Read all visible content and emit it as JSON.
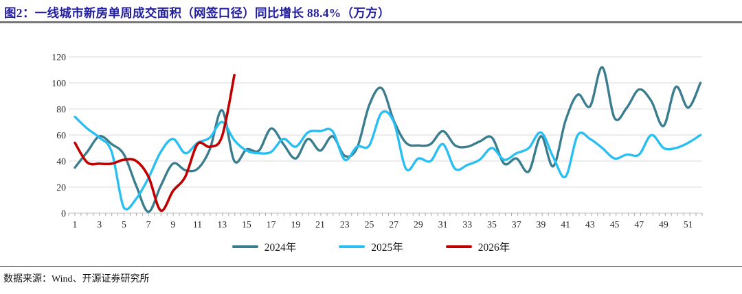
{
  "figure": {
    "title": "图2：一线城市新房单周成交面积（网签口径）同比增长 88.4%（万方）",
    "source": "数据来源：Wind、开源证券研究所"
  },
  "chart_data": {
    "type": "line",
    "title": "一线城市新房单周成交面积（网签口径）同比增长 88.4%（万方）",
    "xlabel": "",
    "ylabel": "",
    "x_range": [
      1,
      52
    ],
    "x_tick_labels": [
      1,
      3,
      5,
      7,
      9,
      11,
      13,
      15,
      17,
      19,
      21,
      23,
      25,
      27,
      29,
      31,
      33,
      35,
      37,
      39,
      41,
      43,
      45,
      47,
      49,
      51
    ],
    "ylim": [
      0,
      120
    ],
    "y_ticks": [
      0,
      20,
      40,
      60,
      80,
      100,
      120
    ],
    "grid": true,
    "legend_position": "bottom",
    "colors": {
      "grid": "#DBDBDB",
      "axis": "#C0C0C0",
      "tick": "#A6A6A6",
      "label": "#262626"
    },
    "series": [
      {
        "name": "2024年",
        "color": "#3A7D8E",
        "width": 3.4,
        "values": [
          35,
          47,
          59,
          53,
          45,
          21,
          1,
          21,
          38,
          33,
          34,
          49,
          79,
          40,
          49,
          48,
          65,
          53,
          42,
          57,
          48,
          59,
          44,
          50,
          83,
          96,
          71,
          54,
          52,
          53,
          63,
          52,
          51,
          55,
          58,
          38,
          42,
          32,
          59,
          36,
          71,
          91,
          82,
          112,
          73,
          81,
          95,
          86,
          67,
          97,
          81,
          100
        ]
      },
      {
        "name": "2025年",
        "color": "#29BFF2",
        "width": 3.4,
        "values": [
          74,
          65,
          58,
          47,
          4,
          11,
          27,
          47,
          57,
          46,
          54,
          58,
          70,
          56,
          48,
          46,
          47,
          57,
          51,
          62,
          63,
          63,
          41,
          51,
          52,
          77,
          70,
          34,
          42,
          40,
          53,
          34,
          37,
          41,
          50,
          41,
          46,
          50,
          62,
          43,
          28,
          60,
          57,
          50,
          42,
          45,
          45,
          60,
          50,
          50,
          54,
          60
        ]
      },
      {
        "name": "2026年",
        "color": "#C00000",
        "width": 3.6,
        "values": [
          54,
          39,
          38,
          38,
          41,
          40,
          28,
          2,
          17,
          28,
          53,
          51,
          59,
          106
        ]
      }
    ]
  }
}
